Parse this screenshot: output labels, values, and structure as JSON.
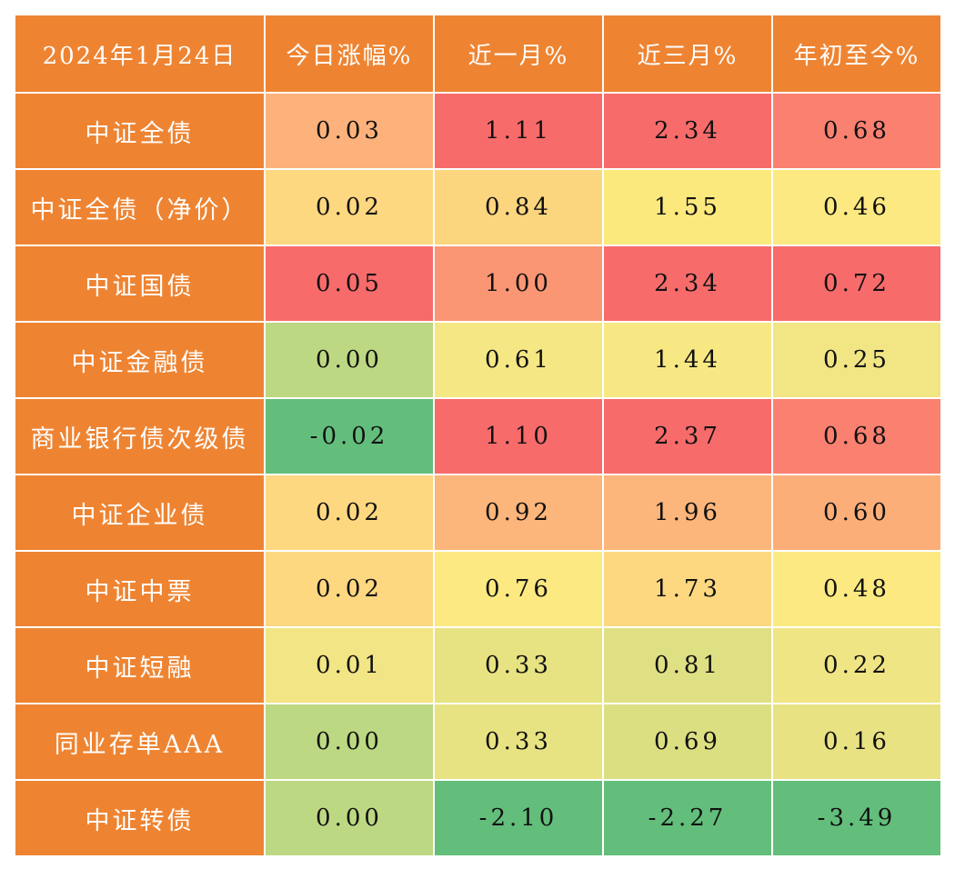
{
  "chart_data": {
    "type": "heatmap",
    "corner_label": "2024年1月24日",
    "columns": [
      "今日涨幅%",
      "近一月%",
      "近三月%",
      "年初至今%"
    ],
    "rows": [
      "中证全债",
      "中证全债（净价）",
      "中证国债",
      "中证金融债",
      "商业银行债次级债",
      "中证企业债",
      "中证中票",
      "中证短融",
      "同业存单AAA",
      "中证转债"
    ],
    "values": [
      [
        "0.03",
        "1.11",
        "2.34",
        "0.68"
      ],
      [
        "0.02",
        "0.84",
        "1.55",
        "0.46"
      ],
      [
        "0.05",
        "1.00",
        "2.34",
        "0.72"
      ],
      [
        "0.00",
        "0.61",
        "1.44",
        "0.25"
      ],
      [
        "-0.02",
        "1.10",
        "2.37",
        "0.68"
      ],
      [
        "0.02",
        "0.92",
        "1.96",
        "0.60"
      ],
      [
        "0.02",
        "0.76",
        "1.73",
        "0.48"
      ],
      [
        "0.01",
        "0.33",
        "0.81",
        "0.22"
      ],
      [
        "0.00",
        "0.33",
        "0.69",
        "0.16"
      ],
      [
        "0.00",
        "-2.10",
        "-2.27",
        "-3.49"
      ]
    ],
    "cell_colors": [
      [
        "#fcb27a",
        "#f86b6b",
        "#f86b6b",
        "#fa8070"
      ],
      [
        "#fed880",
        "#fcd57f",
        "#fbe97e",
        "#fce981"
      ],
      [
        "#f86b6b",
        "#fa9673",
        "#f86b6b",
        "#f86b6b"
      ],
      [
        "#bdd882",
        "#f5e784",
        "#f7e884",
        "#f2e584"
      ],
      [
        "#63be7b",
        "#f86b6b",
        "#f86b6b",
        "#fa8070"
      ],
      [
        "#fed880",
        "#fcb57a",
        "#fcb57a",
        "#fcae79"
      ],
      [
        "#fed880",
        "#fce981",
        "#fdd880",
        "#fce981"
      ],
      [
        "#f2e585",
        "#e7e382",
        "#dfe083",
        "#f0e584"
      ],
      [
        "#bdd882",
        "#e7e382",
        "#dbdf81",
        "#e8e282"
      ],
      [
        "#bdd882",
        "#63be7b",
        "#63be7b",
        "#63be7b"
      ]
    ],
    "header_color": "#ee8432",
    "header_text_color": "#ffffff"
  }
}
